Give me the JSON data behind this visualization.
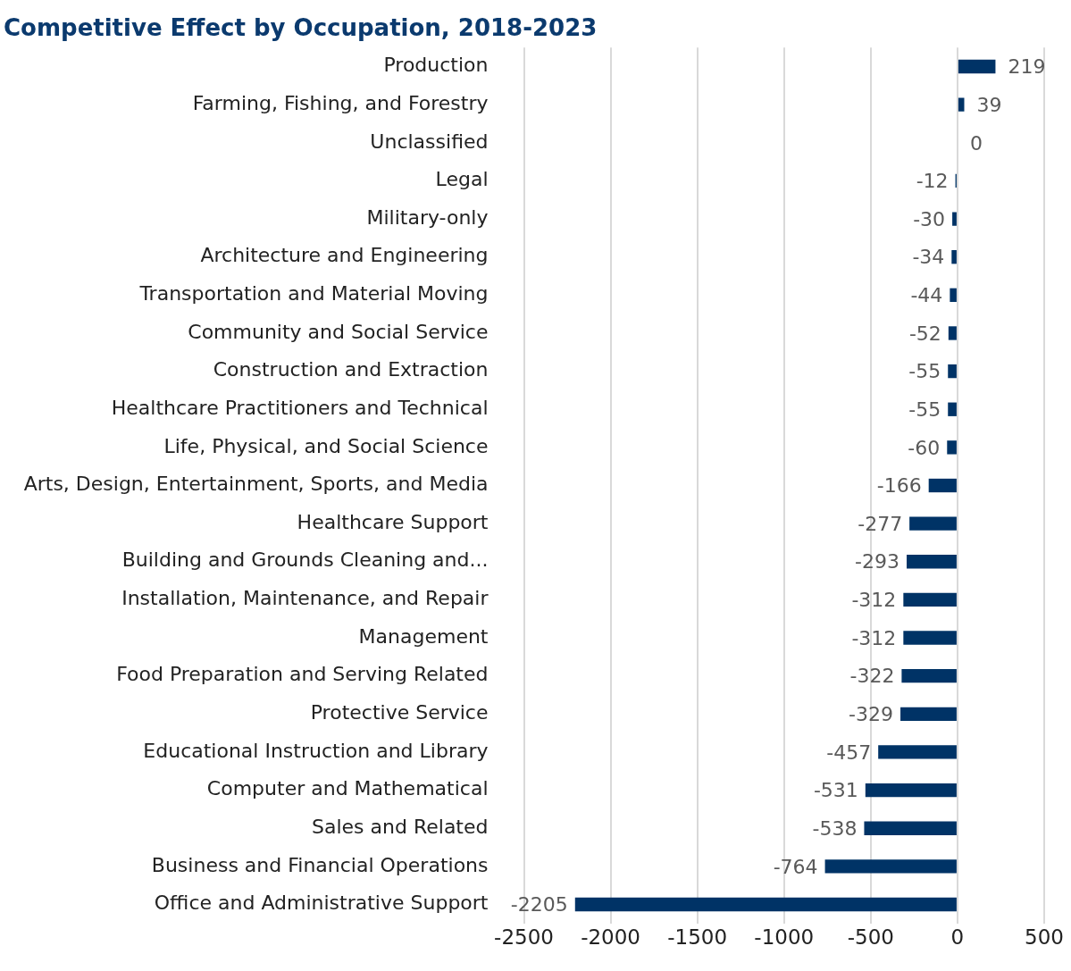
{
  "chart_data": {
    "type": "bar",
    "orientation": "horizontal",
    "title": "Competitive Effect by Occupation, 2018-2023",
    "categories": [
      "Production",
      "Farming, Fishing, and Forestry",
      "Unclassified",
      "Legal",
      "Military-only",
      "Architecture and Engineering",
      "Transportation and Material Moving",
      "Community and Social Service",
      "Construction and Extraction",
      "Healthcare Practitioners and Technical",
      "Life, Physical, and Social Science",
      "Arts, Design, Entertainment, Sports, and Media",
      "Healthcare Support",
      "Building and Grounds Cleaning and...",
      "Installation, Maintenance, and Repair",
      "Management",
      "Food Preparation and Serving Related",
      "Protective Service",
      "Educational Instruction and Library",
      "Computer and Mathematical",
      "Sales and Related",
      "Business and Financial Operations",
      "Office and Administrative Support"
    ],
    "values": [
      219,
      39,
      0,
      -12,
      -30,
      -34,
      -44,
      -52,
      -55,
      -55,
      -60,
      -166,
      -277,
      -293,
      -312,
      -312,
      -322,
      -329,
      -457,
      -531,
      -538,
      -764,
      -2205
    ],
    "color": "#003366",
    "data_labels": true,
    "grid": "x",
    "xlim": [
      -2500,
      500
    ],
    "xticks": [
      -2500,
      -2000,
      -1500,
      -1000,
      -500,
      0,
      500
    ]
  }
}
